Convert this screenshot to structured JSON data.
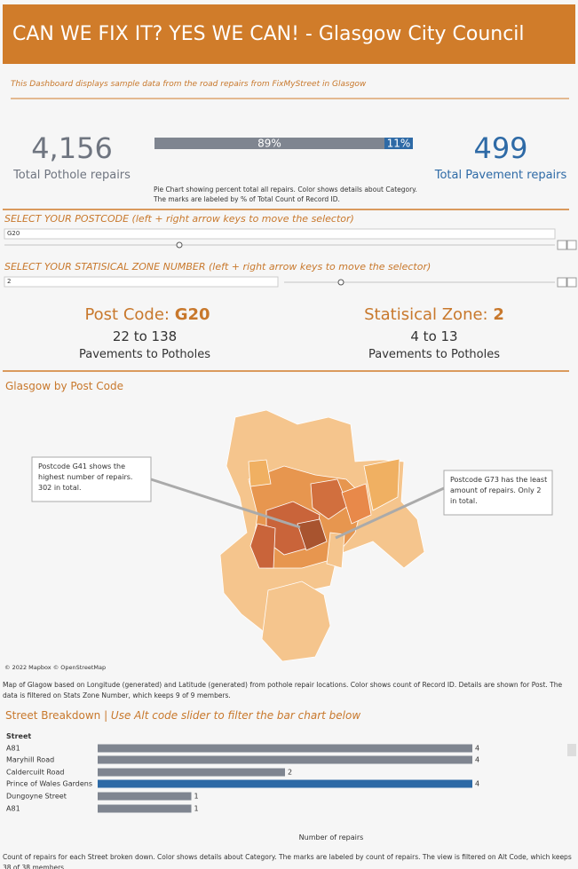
{
  "header": {
    "title": "CAN WE FIX IT? YES WE CAN! - Glasgow City Council"
  },
  "intro": "This Dashboard displays sample data from the road repairs from FixMyStreet in Glasgow",
  "kpis": {
    "potholes": {
      "value": "4,156",
      "label": "Total Pothole repairs"
    },
    "pavements": {
      "value": "499",
      "label": "Total Pavement repairs"
    }
  },
  "split": {
    "values": [
      89,
      11
    ],
    "value_labels": [
      "89%",
      "11%"
    ],
    "colors": [
      "#7f8590",
      "#2e6aa6"
    ],
    "note": "Pie Chart showing percent total all repairs.  Color shows details about Category.  The marks are labeled by % of Total Count of Record ID."
  },
  "postcode_selector": {
    "label": "SELECT YOUR POSTCODE (left + right arrow keys to move the selector)",
    "value": "G20"
  },
  "zone_selector": {
    "label": "SELECT YOUR STATISICAL ZONE NUMBER (left + right arrow keys to move the selector)",
    "value": "2"
  },
  "postcode_card": {
    "label": "Post Code: ",
    "value": "G20",
    "range": "22 to 138",
    "caption": "Pavements to Potholes"
  },
  "zone_card": {
    "label": "Statisical Zone: ",
    "value": "2",
    "range": "4 to 13",
    "caption": "Pavements to Potholes"
  },
  "map": {
    "title": "Glasgow by Post Code",
    "annotations": [
      "Postcode G41 shows the highest number of repairs. 302 in total.",
      "Postcode G73 has the least amount of repairs. Only 2 in total."
    ],
    "credit": "© 2022 Mapbox  © OpenStreetMap",
    "caption": "Map of Glagow based on Longitude (generated) and Latitude (generated) from pothole repair locations.  Color shows count of Record ID.  Details are shown for Post. The data is filtered on Stats Zone Number, which keeps 9 of 9 members."
  },
  "chart_data": {
    "type": "bar",
    "title": "Street Breakdown",
    "subtitle": "Use Alt code slider to filter the bar chart below",
    "category_header": "Street",
    "categories": [
      "A81",
      "Maryhill Road",
      "Caldercuilt Road",
      "Prince of Wales Gardens",
      "Dungoyne Street",
      "A81"
    ],
    "values": [
      4,
      4,
      2,
      4,
      1,
      1
    ],
    "colors": [
      "#7f8590",
      "#7f8590",
      "#7f8590",
      "#2e6aa6",
      "#7f8590",
      "#7f8590"
    ],
    "xlim": [
      0,
      4
    ],
    "x_label": "Number of repairs",
    "caption": "Count of repairs for each Street broken down.  Color shows details about Category.  The marks are labeled by count of repairs. The view is filtered on Alt Code, which keeps 38 of 38 members."
  }
}
